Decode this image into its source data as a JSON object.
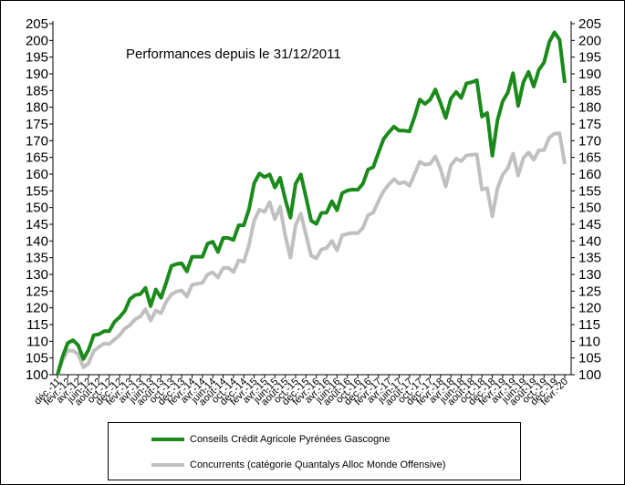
{
  "chart_data": {
    "type": "line",
    "title": "Performances depuis le 31/12/2011",
    "ylim": [
      100,
      205
    ],
    "yticks": [
      100,
      105,
      110,
      115,
      120,
      125,
      130,
      135,
      140,
      145,
      150,
      155,
      160,
      165,
      170,
      175,
      180,
      185,
      190,
      195,
      200,
      205
    ],
    "grid": false,
    "legend_position": "bottom",
    "x_tick_labels": [
      "déc.-11",
      "févr.-12",
      "avr.-12",
      "juin-12",
      "août-12",
      "oct.-12",
      "déc.-12",
      "févr.-13",
      "avr.-13",
      "juin-13",
      "août-13",
      "oct.-13",
      "déc.-13",
      "févr.-14",
      "avr.-14",
      "juin-14",
      "août-14",
      "oct.-14",
      "déc.-14",
      "févr.-15",
      "avr.-15",
      "juin-15",
      "août-15",
      "oct.-15",
      "déc.-15",
      "févr.-16",
      "avr.-16",
      "juin-16",
      "août-16",
      "oct.-16",
      "déc.-16",
      "févr.-17",
      "avr.-17",
      "juin-17",
      "août-17",
      "oct.-17",
      "déc.-17",
      "févr.-18",
      "avr.-18",
      "juin-18",
      "août-18",
      "oct.-18",
      "déc.-18",
      "févr.-19",
      "avr.-19",
      "juin-19",
      "août-19",
      "oct.-19",
      "déc.-19",
      "févr.-20"
    ],
    "x": [
      "déc.-11",
      "janv.-12",
      "févr.-12",
      "mars-12",
      "avr.-12",
      "mai-12",
      "juin-12",
      "juil.-12",
      "août-12",
      "sept.-12",
      "oct.-12",
      "nov.-12",
      "déc.-12",
      "janv.-13",
      "févr.-13",
      "mars-13",
      "avr.-13",
      "mai-13",
      "juin-13",
      "juil.-13",
      "août-13",
      "sept.-13",
      "oct.-13",
      "nov.-13",
      "déc.-13",
      "janv.-14",
      "févr.-14",
      "mars-14",
      "avr.-14",
      "mai-14",
      "juin-14",
      "juil.-14",
      "août-14",
      "sept.-14",
      "oct.-14",
      "nov.-14",
      "déc.-14",
      "janv.-15",
      "févr.-15",
      "mars-15",
      "avr.-15",
      "mai-15",
      "juin-15",
      "juil.-15",
      "août-15",
      "sept.-15",
      "oct.-15",
      "nov.-15",
      "déc.-15",
      "janv.-16",
      "févr.-16",
      "mars-16",
      "avr.-16",
      "mai-16",
      "juin-16",
      "juil.-16",
      "août-16",
      "sept.-16",
      "oct.-16",
      "nov.-16",
      "déc.-16",
      "janv.-17",
      "févr.-17",
      "mars-17",
      "avr.-17",
      "mai-17",
      "juin-17",
      "juil.-17",
      "août-17",
      "sept.-17",
      "oct.-17",
      "nov.-17",
      "déc.-17",
      "janv.-18",
      "févr.-18",
      "mars-18",
      "avr.-18",
      "mai-18",
      "juin-18",
      "juil.-18",
      "août-18",
      "sept.-18",
      "oct.-18",
      "nov.-18",
      "déc.-18",
      "janv.-19",
      "févr.-19",
      "mars-19",
      "avr.-19",
      "mai-19",
      "juin-19",
      "juil.-19",
      "août-19",
      "sept.-19",
      "oct.-19",
      "nov.-19",
      "déc.-19",
      "janv.-20",
      "févr.-20"
    ],
    "series": [
      {
        "name": "Conseils Crédit Agricole Pyrénées Gascogne",
        "color": "#1a8a1a",
        "values": [
          100,
          105.5,
          109.5,
          110.3,
          108.8,
          104.7,
          107.4,
          111.8,
          112.1,
          113,
          113,
          115.8,
          117.2,
          119.1,
          122.6,
          123.8,
          124.1,
          126,
          120.5,
          125.5,
          123,
          127.5,
          132.5,
          133.1,
          133.3,
          130.9,
          135.3,
          135.3,
          135.3,
          139.2,
          139.8,
          136.7,
          140.9,
          140.9,
          140.3,
          144.7,
          144.7,
          149.5,
          157.3,
          160.2,
          159.1,
          159.9,
          156,
          158.9,
          152.5,
          147,
          157.1,
          159.9,
          153.2,
          146.1,
          145.1,
          148.4,
          148.5,
          151.9,
          149.2,
          154.3,
          155.1,
          155.4,
          155.3,
          157.1,
          161.4,
          162.1,
          166.4,
          170.5,
          172.5,
          174.2,
          173,
          173,
          172.8,
          177.3,
          182.3,
          181,
          182.3,
          185.3,
          181.3,
          176.8,
          182.6,
          184.6,
          182.8,
          187.1,
          187.5,
          188.1,
          177.2,
          178.3,
          165.5,
          176.1,
          181.8,
          184.4,
          190.2,
          180.4,
          187.5,
          190.6,
          186.2,
          191.2,
          193.4,
          199.5,
          202.4,
          200.2,
          187.3
        ]
      },
      {
        "name": "Concurrents (catégorie Quantalys Alloc Monde Offensive)",
        "color": "#c0c0c0",
        "values": [
          100,
          104.5,
          107.2,
          107.2,
          106.1,
          102.2,
          103.4,
          107.1,
          108.3,
          109.3,
          109.2,
          110.5,
          111.8,
          113.8,
          114.8,
          116.6,
          117.4,
          119.6,
          116.2,
          119.2,
          118.4,
          121.8,
          124,
          124.9,
          125.2,
          123.4,
          126.9,
          127.2,
          127.5,
          130,
          130.6,
          129.1,
          131.9,
          132,
          130.7,
          134.2,
          133.8,
          138.8,
          146.1,
          149.4,
          148.7,
          151.6,
          146.5,
          150.3,
          141.7,
          135,
          144.7,
          148.2,
          141.9,
          135.6,
          134.8,
          137.5,
          137.9,
          140,
          137.2,
          141.7,
          142.1,
          142.4,
          142.3,
          143.9,
          147.7,
          148.5,
          151.9,
          154.9,
          156.9,
          158.5,
          157.2,
          157.6,
          156.5,
          160.1,
          163.7,
          162.8,
          163.1,
          165.3,
          161.6,
          156.3,
          162.7,
          164.6,
          163.9,
          165.6,
          165.8,
          165.9,
          155.4,
          155.8,
          147.4,
          155.7,
          159.8,
          161.8,
          166.1,
          159.6,
          164.8,
          166.5,
          164.3,
          167.1,
          167.2,
          170.9,
          172.1,
          172.2,
          163
        ]
      }
    ]
  }
}
